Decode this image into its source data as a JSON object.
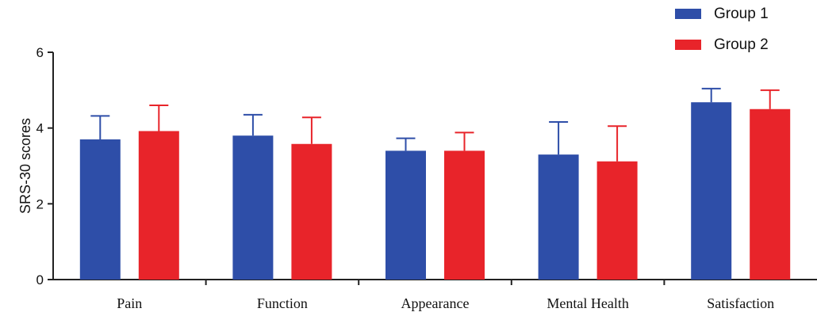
{
  "chart_data": {
    "type": "bar",
    "categories": [
      "Pain",
      "Function",
      "Appearance",
      "Mental Health",
      "Satisfaction"
    ],
    "series": [
      {
        "name": "Group 1",
        "color": "#2e4ea8",
        "values": [
          3.7,
          3.8,
          3.4,
          3.3,
          4.68
        ],
        "errors": [
          0.62,
          0.55,
          0.33,
          0.86,
          0.36
        ]
      },
      {
        "name": "Group 2",
        "color": "#e8242a",
        "values": [
          3.92,
          3.58,
          3.4,
          3.12,
          4.5
        ],
        "errors": [
          0.68,
          0.7,
          0.48,
          0.93,
          0.5
        ]
      }
    ],
    "ylabel": "SRS-30 scores",
    "xlabel": "",
    "ylim": [
      0,
      6
    ],
    "yticks": [
      "0",
      "2",
      "4",
      "6"
    ],
    "legend_position": "top-right",
    "grid": false
  }
}
